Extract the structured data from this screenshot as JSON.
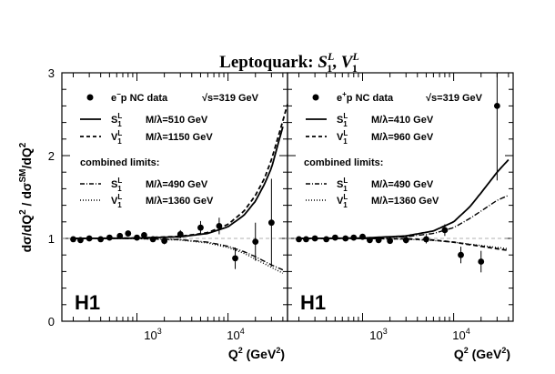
{
  "chart_data": {
    "type": "scatter",
    "title": "Leptoquark: S_1^L, V_1^L",
    "title_parts": {
      "prefix": "Leptoquark: ",
      "s_base": "S",
      "s_sub": "1",
      "s_sup": "L",
      "sep": ", ",
      "v_base": "V",
      "v_sub": "1",
      "v_sup": "L"
    },
    "ylabel": "dσ/dQ² / dσ^SM/dQ²",
    "ylabel_parts": {
      "a": "dσ/dQ",
      "a_sup": "2",
      "b": " / dσ",
      "b_sup": "SM",
      "c": "/dQ",
      "c_sup": "2"
    },
    "xlabel": "Q² (GeV²)",
    "xlabel_parts": {
      "a": "Q",
      "a_sup": "2",
      "b": " (GeV",
      "b_sup": "2",
      "c": ")"
    },
    "x_scale": "log",
    "xlim": [
      150,
      45000
    ],
    "ylim": [
      0,
      3
    ],
    "y_ticks": [
      "0",
      "1",
      "2",
      "3"
    ],
    "x_tick_labels": [
      {
        "value": 1000,
        "base": "10",
        "exp": "3"
      },
      {
        "value": 10000,
        "base": "10",
        "exp": "4"
      }
    ],
    "panels": [
      {
        "experiment_label": "H1",
        "data_label_base": "e",
        "data_label_sup": "−",
        "data_label_rest": "p NC data",
        "sqrt_s": "√s=319 GeV",
        "fit_curves": [
          {
            "sym_base": "S",
            "sym_sub": "1",
            "sym_sup": "L",
            "label": "M/λ=510 GeV",
            "style": "solid",
            "x": [
              200,
              1000,
              3000,
              6000,
              10000,
              15000,
              20000,
              25000,
              30000,
              40000
            ],
            "y": [
              1.0,
              1.003,
              1.02,
              1.06,
              1.14,
              1.28,
              1.45,
              1.65,
              1.85,
              2.35
            ]
          },
          {
            "sym_base": "V",
            "sym_sub": "1",
            "sym_sup": "L",
            "label": "M/λ=1150 GeV",
            "style": "dashed",
            "x": [
              200,
              1000,
              3000,
              6000,
              10000,
              15000,
              20000,
              25000,
              30000,
              40000,
              45000
            ],
            "y": [
              1.0,
              1.004,
              1.025,
              1.07,
              1.17,
              1.33,
              1.52,
              1.72,
              1.95,
              2.42,
              2.62
            ]
          }
        ],
        "combined_limits_label": "combined limits:",
        "limit_curves": [
          {
            "sym_base": "S",
            "sym_sub": "1",
            "sym_sup": "L",
            "label": "M/λ=490 GeV",
            "style": "dashdot",
            "x": [
              200,
              1000,
              3000,
              6000,
              10000,
              15000,
              20000,
              30000,
              40000
            ],
            "y": [
              1.0,
              0.998,
              0.985,
              0.955,
              0.905,
              0.84,
              0.78,
              0.68,
              0.62
            ]
          },
          {
            "sym_base": "V",
            "sym_sub": "1",
            "sym_sup": "L",
            "label": "M/λ=1360 GeV",
            "style": "dotted",
            "x": [
              200,
              1000,
              3000,
              6000,
              10000,
              15000,
              20000,
              30000,
              40000
            ],
            "y": [
              1.0,
              0.997,
              0.98,
              0.945,
              0.89,
              0.82,
              0.75,
              0.65,
              0.58
            ]
          }
        ],
        "data": [
          {
            "x": 200,
            "y": 0.99,
            "err": 0.01
          },
          {
            "x": 240,
            "y": 0.98,
            "err": 0.01
          },
          {
            "x": 300,
            "y": 1.0,
            "err": 0.01
          },
          {
            "x": 400,
            "y": 0.99,
            "err": 0.01
          },
          {
            "x": 500,
            "y": 1.01,
            "err": 0.012
          },
          {
            "x": 650,
            "y": 1.03,
            "err": 0.015
          },
          {
            "x": 800,
            "y": 1.06,
            "err": 0.02
          },
          {
            "x": 1000,
            "y": 1.01,
            "err": 0.02
          },
          {
            "x": 1200,
            "y": 1.04,
            "err": 0.025
          },
          {
            "x": 1500,
            "y": 0.99,
            "err": 0.03
          },
          {
            "x": 2000,
            "y": 0.97,
            "err": 0.04
          },
          {
            "x": 3000,
            "y": 1.05,
            "err": 0.05
          },
          {
            "x": 5000,
            "y": 1.13,
            "err": 0.08
          },
          {
            "x": 8000,
            "y": 1.15,
            "err": 0.1
          },
          {
            "x": 12000,
            "y": 0.76,
            "err": 0.13
          },
          {
            "x": 20000,
            "y": 0.96,
            "err": 0.23
          },
          {
            "x": 30000,
            "y": 1.19,
            "err": 0.53
          }
        ]
      },
      {
        "experiment_label": "H1",
        "data_label_base": "e",
        "data_label_sup": "+",
        "data_label_rest": "p NC data",
        "sqrt_s": "√s=319 GeV",
        "fit_curves": [
          {
            "sym_base": "S",
            "sym_sub": "1",
            "sym_sup": "L",
            "label": "M/λ=410 GeV",
            "style": "solid",
            "x": [
              200,
              1000,
              3000,
              6000,
              10000,
              15000,
              20000,
              30000,
              40000
            ],
            "y": [
              1.0,
              1.004,
              1.03,
              1.09,
              1.2,
              1.38,
              1.55,
              1.8,
              1.95
            ]
          },
          {
            "sym_base": "V",
            "sym_sub": "1",
            "sym_sup": "L",
            "label": "M/λ=960 GeV",
            "style": "dashed",
            "x": [
              200,
              1000,
              3000,
              6000,
              10000,
              15000,
              20000,
              30000,
              40000
            ],
            "y": [
              1.0,
              1.0,
              0.995,
              0.98,
              0.955,
              0.925,
              0.905,
              0.875,
              0.855
            ]
          }
        ],
        "combined_limits_label": "combined limits:",
        "limit_curves": [
          {
            "sym_base": "S",
            "sym_sub": "1",
            "sym_sup": "L",
            "label": "M/λ=490 GeV",
            "style": "dashdot",
            "x": [
              200,
              1000,
              3000,
              6000,
              10000,
              15000,
              20000,
              30000,
              40000
            ],
            "y": [
              1.0,
              1.003,
              1.02,
              1.06,
              1.13,
              1.24,
              1.33,
              1.46,
              1.52
            ]
          },
          {
            "sym_base": "V",
            "sym_sub": "1",
            "sym_sup": "L",
            "label": "M/λ=1360 GeV",
            "style": "dotted",
            "x": [
              200,
              1000,
              3000,
              6000,
              10000,
              15000,
              20000,
              30000,
              40000
            ],
            "y": [
              1.0,
              0.999,
              0.99,
              0.975,
              0.955,
              0.93,
              0.915,
              0.89,
              0.875
            ]
          }
        ],
        "data": [
          {
            "x": 200,
            "y": 0.99,
            "err": 0.01
          },
          {
            "x": 240,
            "y": 0.99,
            "err": 0.01
          },
          {
            "x": 300,
            "y": 1.0,
            "err": 0.01
          },
          {
            "x": 400,
            "y": 0.99,
            "err": 0.01
          },
          {
            "x": 500,
            "y": 1.01,
            "err": 0.012
          },
          {
            "x": 650,
            "y": 1.0,
            "err": 0.015
          },
          {
            "x": 800,
            "y": 1.01,
            "err": 0.02
          },
          {
            "x": 1000,
            "y": 1.02,
            "err": 0.02
          },
          {
            "x": 1200,
            "y": 0.98,
            "err": 0.025
          },
          {
            "x": 1500,
            "y": 0.98,
            "err": 0.03
          },
          {
            "x": 2000,
            "y": 0.97,
            "err": 0.03
          },
          {
            "x": 3000,
            "y": 0.98,
            "err": 0.04
          },
          {
            "x": 5000,
            "y": 0.99,
            "err": 0.05
          },
          {
            "x": 8000,
            "y": 1.1,
            "err": 0.07
          },
          {
            "x": 12000,
            "y": 0.8,
            "err": 0.1
          },
          {
            "x": 20000,
            "y": 0.72,
            "err": 0.13
          },
          {
            "x": 30000,
            "y": 2.6,
            "err": 0.9
          }
        ]
      }
    ]
  }
}
